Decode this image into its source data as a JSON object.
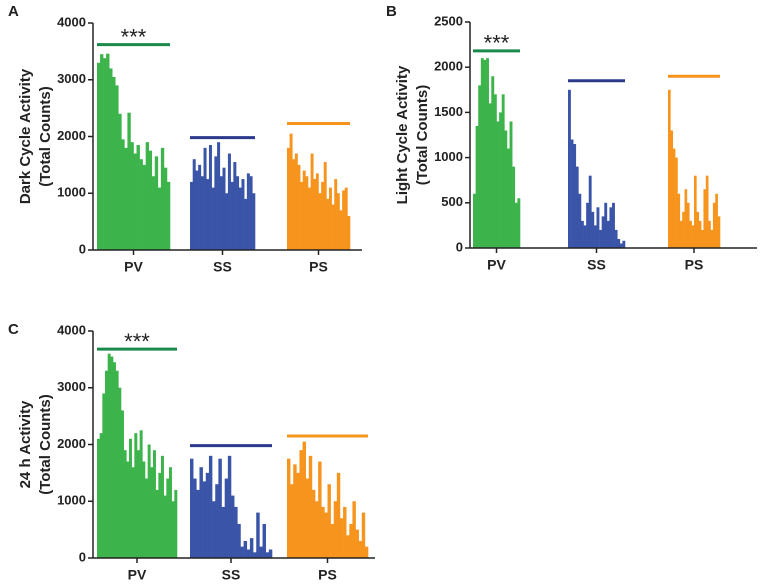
{
  "chart_data": [
    {
      "type": "bar",
      "panel": "A",
      "ylabel": [
        "Dark Cycle Activity",
        "(Total Counts)"
      ],
      "ylim": [
        0,
        4000
      ],
      "yticks": [
        0,
        1000,
        2000,
        3000,
        4000
      ],
      "annotation": "***",
      "series": [
        {
          "name": "PV",
          "color": "#3cb44b",
          "bracket_color": "#1a8a4a",
          "bracket": 3620,
          "values": [
            3300,
            3450,
            3380,
            3460,
            3200,
            3050,
            2900,
            2400,
            1950,
            1800,
            2420,
            1900,
            1700,
            1850,
            1600,
            1500,
            1900,
            1750,
            1300,
            1650,
            1100,
            1800,
            1450,
            1200
          ]
        },
        {
          "name": "SS",
          "color": "#3a55a8",
          "bracket_color": "#2b3a8c",
          "bracket": 1980,
          "values": [
            1200,
            1600,
            1400,
            1500,
            1300,
            1800,
            1250,
            1850,
            1100,
            1650,
            1900,
            1300,
            1450,
            1000,
            1700,
            1200,
            1550,
            1300,
            1100,
            1250,
            900,
            1350,
            1300,
            1000
          ]
        },
        {
          "name": "PS",
          "color": "#f7941d",
          "bracket_color": "#f7941d",
          "bracket": 2230,
          "values": [
            1800,
            2050,
            1600,
            1700,
            1500,
            1200,
            1400,
            1300,
            1100,
            1700,
            1250,
            1350,
            1000,
            1200,
            1550,
            900,
            1100,
            800,
            1250,
            1000,
            700,
            1050,
            1100,
            600
          ]
        }
      ]
    },
    {
      "type": "bar",
      "panel": "B",
      "ylabel": [
        "Light Cycle Activity",
        "(Total Counts)"
      ],
      "ylim": [
        0,
        2500
      ],
      "yticks": [
        0,
        500,
        1000,
        1500,
        2000,
        2500
      ],
      "annotation": "***",
      "series": [
        {
          "name": "PV",
          "color": "#3cb44b",
          "bracket_color": "#1a8a4a",
          "bracket": 2180,
          "values": [
            600,
            1350,
            1800,
            2100,
            2080,
            2100,
            1600,
            1900,
            1700,
            1400,
            1500,
            1700,
            1300,
            1100,
            1400,
            900,
            500,
            550
          ]
        },
        {
          "name": "SS",
          "color": "#3a55a8",
          "bracket_color": "#2b3a8c",
          "bracket": 1850,
          "values": [
            1750,
            1200,
            1150,
            900,
            600,
            300,
            250,
            500,
            800,
            400,
            250,
            450,
            200,
            350,
            500,
            300,
            450,
            500,
            200,
            100,
            50,
            80
          ]
        },
        {
          "name": "PS",
          "color": "#f7941d",
          "bracket_color": "#f7941d",
          "bracket": 1900,
          "values": [
            1750,
            1300,
            1100,
            1000,
            600,
            300,
            400,
            650,
            500,
            300,
            250,
            800,
            400,
            300,
            200,
            650,
            800,
            300,
            200,
            500,
            600,
            350
          ]
        }
      ]
    },
    {
      "type": "bar",
      "panel": "C",
      "ylabel": [
        "24 h Activity",
        "(Total Counts)"
      ],
      "ylim": [
        0,
        4000
      ],
      "yticks": [
        0,
        1000,
        2000,
        3000,
        4000
      ],
      "annotation": "***",
      "series": [
        {
          "name": "PV",
          "color": "#3cb44b",
          "bracket_color": "#1a8a4a",
          "bracket": 3680,
          "values": [
            2100,
            2200,
            2900,
            3300,
            3600,
            3550,
            3450,
            3300,
            3000,
            2600,
            1900,
            1700,
            2100,
            1600,
            2200,
            1900,
            2250,
            1700,
            1400,
            2000,
            1600,
            1900,
            1200,
            1500,
            1800,
            1100,
            1400,
            1600,
            1000,
            1200
          ]
        },
        {
          "name": "SS",
          "color": "#3a55a8",
          "bracket_color": "#2b3a8c",
          "bracket": 1980,
          "values": [
            1750,
            1400,
            1200,
            1600,
            1350,
            1500,
            1800,
            1000,
            1300,
            1750,
            900,
            1400,
            1800,
            1100,
            900,
            600,
            200,
            300,
            150,
            350,
            100,
            800,
            200,
            600,
            100,
            150
          ]
        },
        {
          "name": "PS",
          "color": "#f7941d",
          "bracket_color": "#f7941d",
          "bracket": 2150,
          "values": [
            1750,
            1300,
            1650,
            1500,
            1900,
            2050,
            1400,
            1800,
            1200,
            1000,
            1700,
            900,
            800,
            1300,
            600,
            1000,
            1500,
            700,
            900,
            400,
            600,
            1000,
            500,
            300,
            800,
            200
          ]
        }
      ]
    }
  ]
}
